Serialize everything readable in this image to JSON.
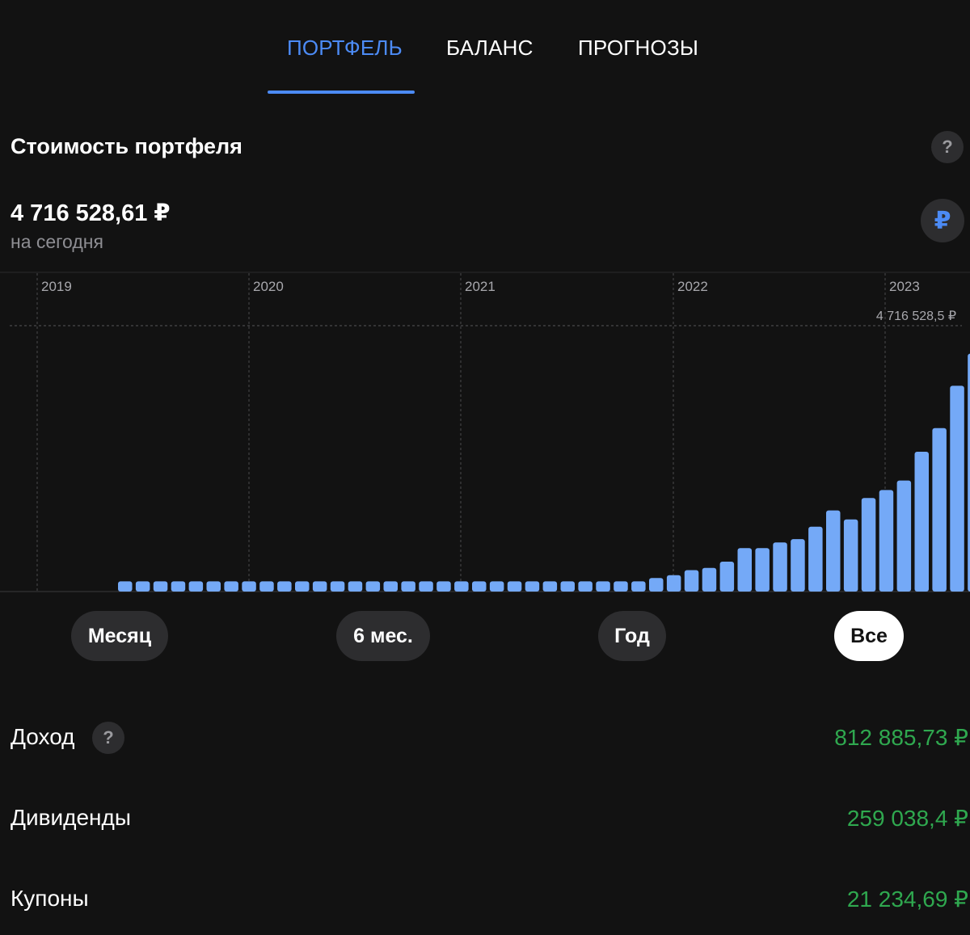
{
  "tabs": [
    {
      "label": "ПОРТФЕЛЬ",
      "active": true
    },
    {
      "label": "БАЛАНС",
      "active": false
    },
    {
      "label": "ПРОГНОЗЫ",
      "active": false
    }
  ],
  "portfolio": {
    "title": "Стоимость портфеля",
    "help_label": "?",
    "value": "4 716 528,61 ₽",
    "subtitle": "на сегодня",
    "currency_symbol": "₽"
  },
  "colors": {
    "accent": "#4c8bf5",
    "bar": "#74a9f7",
    "positive": "#2fa84f",
    "background": "#121212"
  },
  "chart_data": {
    "type": "bar",
    "x_tick_labels": [
      "2019",
      "2020",
      "2021",
      "2022",
      "2023"
    ],
    "max_label": "4 716 528,5 ₽",
    "ylim": [
      0,
      4716528.5
    ],
    "y_axis_shown": false,
    "grid": "vertical dashed lines at year marks",
    "values": [
      180000,
      180000,
      180000,
      180000,
      180000,
      180000,
      180000,
      180000,
      180000,
      180000,
      180000,
      180000,
      180000,
      180000,
      180000,
      180000,
      180000,
      180000,
      180000,
      180000,
      180000,
      180000,
      180000,
      180000,
      180000,
      180000,
      180000,
      180000,
      180000,
      180000,
      240000,
      290000,
      380000,
      420000,
      530000,
      770000,
      770000,
      870000,
      930000,
      1150000,
      1440000,
      1280000,
      1660000,
      1800000,
      1970000,
      2480000,
      2900000,
      3650000,
      4220000,
      4716528.5
    ]
  },
  "periods": [
    {
      "label": "Месяц",
      "selected": false
    },
    {
      "label": "6 мес.",
      "selected": false
    },
    {
      "label": "Год",
      "selected": false
    },
    {
      "label": "Все",
      "selected": true
    }
  ],
  "stats": {
    "income": {
      "label": "Доход",
      "value": "812 885,73 ₽",
      "help_label": "?"
    },
    "dividends": {
      "label": "Дивиденды",
      "value": "259 038,4 ₽"
    },
    "coupons": {
      "label": "Купоны",
      "value": "21 234,69 ₽"
    }
  }
}
